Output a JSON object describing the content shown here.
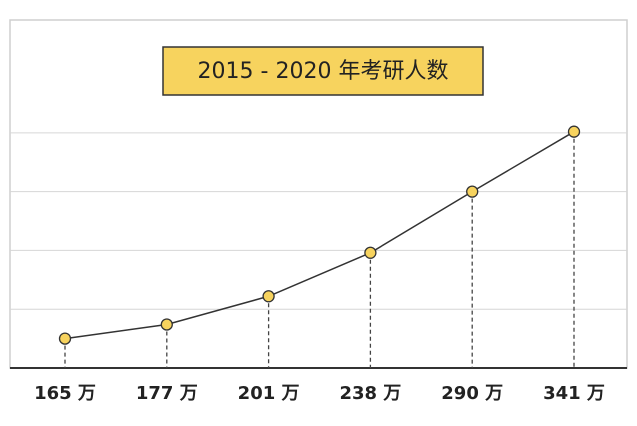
{
  "chart_data": {
    "type": "line",
    "title": "2015 - 2020 年考研人数",
    "categories": [
      null,
      null,
      null,
      null,
      null,
      null
    ],
    "values": [
      165,
      177,
      201,
      238,
      290,
      341
    ],
    "value_labels": [
      "165 万",
      "177 万",
      "201 万",
      "238 万",
      "290 万",
      "341 万"
    ],
    "color": "#333333",
    "marker_color": "#f7d35e",
    "ylim": [
      140,
      436
    ],
    "yticks": [
      190,
      240,
      290,
      340
    ],
    "grid": true
  }
}
